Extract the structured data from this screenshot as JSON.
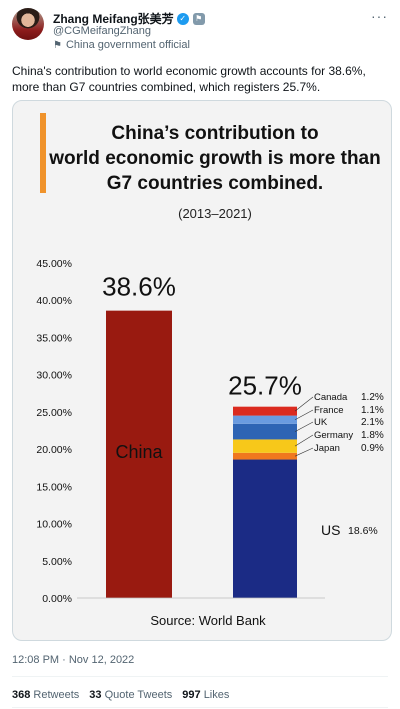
{
  "tweet": {
    "display_name": "Zhang Meifang张美芳",
    "handle": "@CGMeifangZhang",
    "account_label": "China government official",
    "text": "China's contribution to world economic growth accounts for 38.6%, more than G7 countries combined, which registers 25.7%.",
    "timestamp": "12:08 PM · Nov 12, 2022",
    "stats": {
      "retweets_count": "368",
      "retweets_label": "Retweets",
      "quotes_count": "33",
      "quotes_label": "Quote Tweets",
      "likes_count": "997",
      "likes_label": "Likes"
    }
  },
  "chart_data": {
    "type": "bar",
    "title_lines": [
      "China’s contribution to",
      "world economic growth is more than",
      "G7 countries combined."
    ],
    "subtitle": "(2013–2021)",
    "source": "Source: World Bank",
    "ylim": [
      0,
      45
    ],
    "yticks": [
      "0.00%",
      "5.00%",
      "10.00%",
      "15.00%",
      "20.00%",
      "25.00%",
      "30.00%",
      "35.00%",
      "40.00%",
      "45.00%"
    ],
    "ytick_values": [
      0,
      5,
      10,
      15,
      20,
      25,
      30,
      35,
      40,
      45
    ],
    "bars": [
      {
        "label": "China",
        "value": 38.6,
        "total_label": "38.6%",
        "color": "#991a10"
      },
      {
        "label": "",
        "value": 25.7,
        "total_label": "25.7%",
        "stacked": true
      }
    ],
    "stack": [
      {
        "name": "US",
        "value": 18.6,
        "value_label": "18.6%",
        "color": "#1b2b85"
      },
      {
        "name": "Japan",
        "value": 0.9,
        "value_label": "0.9%",
        "color": "#f0781e"
      },
      {
        "name": "Germany",
        "value": 1.8,
        "value_label": "1.8%",
        "color": "#f7c81a"
      },
      {
        "name": "UK",
        "value": 2.1,
        "value_label": "2.1%",
        "color": "#2e64b4"
      },
      {
        "name": "France",
        "value": 1.1,
        "value_label": "1.1%",
        "color": "#6a9be0"
      },
      {
        "name": "Canada",
        "value": 1.2,
        "value_label": "1.2%",
        "color": "#db2b1f"
      }
    ],
    "colors": {
      "accent": "#f0932b",
      "background": "#f3f3f3"
    }
  }
}
